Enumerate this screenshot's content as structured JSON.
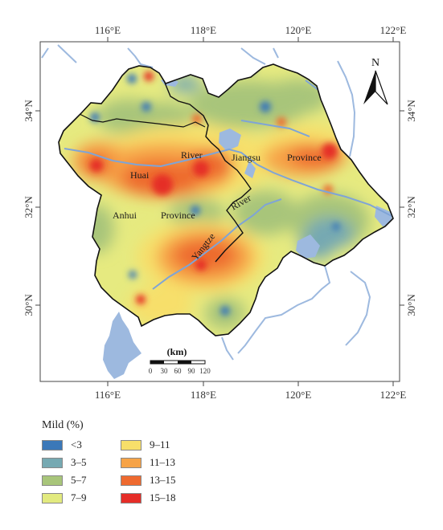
{
  "map": {
    "top_lon_ticks": [
      "116°E",
      "118°E",
      "120°E",
      "122°E"
    ],
    "bottom_lon_ticks": [
      "116°E",
      "118°E",
      "120°E",
      "122°E"
    ],
    "left_lat_ticks": [
      "34°N",
      "32°N",
      "30°N"
    ],
    "right_lat_ticks": [
      "34°N",
      "32°N",
      "30°N"
    ],
    "place_labels": {
      "huai": "Huai",
      "river_huai": "River",
      "jiangsu": "Jiangsu",
      "province_jiangsu": "Province",
      "anhui": "Anhui",
      "province_anhui": "Province",
      "river_yangtze": "River",
      "yangtze": "Yangtze"
    },
    "north_arrow_label": "N",
    "scale_bar": {
      "unit": "(km)",
      "ticks": [
        "0",
        "30",
        "60",
        "90",
        "120"
      ]
    }
  },
  "legend": {
    "title": "Mild (%)",
    "items": [
      {
        "label": "<3",
        "color": "#3b78b8"
      },
      {
        "label": "3–5",
        "color": "#76a9b2"
      },
      {
        "label": "5–7",
        "color": "#a8c57a"
      },
      {
        "label": "7–9",
        "color": "#e2ea7f"
      },
      {
        "label": "9–11",
        "color": "#f7df6a"
      },
      {
        "label": "11–13",
        "color": "#f6a347"
      },
      {
        "label": "13–15",
        "color": "#ee6a2f"
      },
      {
        "label": "15–18",
        "color": "#e52d28"
      }
    ]
  },
  "colors": {
    "water": "#9db9df",
    "border": "#111111",
    "base_fill": "#e8ec86"
  }
}
